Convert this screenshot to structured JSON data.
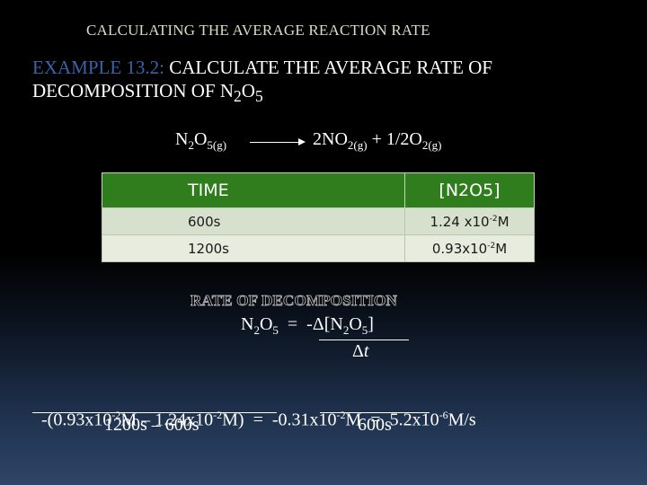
{
  "slide": {
    "title": "CALCULATING THE AVERAGE REACTION RATE",
    "example_label": "EXAMPLE 13.2:",
    "example_text_1": " CALCULATE THE AVERAGE RATE OF DECOMPOSITION OF N",
    "example_sub_2": "2",
    "example_text_2": "O",
    "example_sub_5": "5"
  },
  "reaction": {
    "reactant_n": "N",
    "reactant_n_sub": "2",
    "reactant_o": "O",
    "reactant_o_sub": "5(g)",
    "product_1": "2NO",
    "product_1_sub": "2(g)",
    "plus": " +  1/2O",
    "product_2_sub": "2(g)"
  },
  "table": {
    "headers": [
      "TIME",
      "[N2O5]"
    ],
    "rows": [
      {
        "time": "600s",
        "conc_base": "1.24 x10",
        "conc_exp": "-2",
        "conc_unit": "M"
      },
      {
        "time": "1200s",
        "conc_base": "0.93x10",
        "conc_exp": "-2",
        "conc_unit": "M"
      }
    ]
  },
  "rate": {
    "heading": "RATE OF DECOMPOSITION",
    "lhs_n": "N",
    "lhs_n_sub": "2",
    "lhs_o": "O",
    "lhs_o_sub": "5",
    "equals": "  =  -",
    "delta_bracket": "Δ[N",
    "rhs_n_sub": "2",
    "rhs_o": "O",
    "rhs_o_sub": "5",
    "rhs_close": "]",
    "delta_t_symbol": "Δ",
    "delta_t_var": "t"
  },
  "calculation": {
    "part_a": "-(0.93x10",
    "exp_a": "-2",
    "part_b": "M – 1.24x10",
    "exp_b": "-2",
    "part_c": "M)  =  -0.31x10",
    "exp_c": "-2",
    "part_d": "M  =  5.2x10",
    "exp_d": "-6",
    "part_e": "M/s",
    "den_1": "1200s – 600s",
    "den_2": "600s"
  },
  "colors": {
    "title": "#d9dcc0",
    "example_label": "#3a63a8",
    "table_header": "#2f7d1d",
    "table_row_1": "#d6e0cd",
    "table_row_2": "#e7ecdf"
  }
}
